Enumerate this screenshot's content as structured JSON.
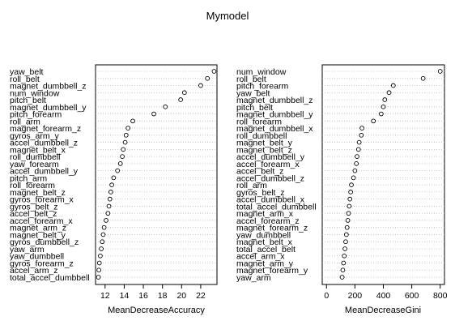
{
  "title": "Mymodel",
  "chart_data": [
    {
      "type": "dotchart",
      "xlabel": "MeanDecreaseAccuracy",
      "xlim": [
        11,
        23.7
      ],
      "xticks": [
        12,
        14,
        16,
        18,
        20,
        22
      ],
      "grid": "dotted horizontal",
      "labels": [
        "yaw_belt",
        "roll_belt",
        "magnet_dumbbell_z",
        "num_window",
        "pitch_belt",
        "magnet_dumbbell_y",
        "pitch_forearm",
        "roll_arm",
        "magnet_forearm_z",
        "gyros_arm_y",
        "accel_dumbbell_z",
        "magnet_belt_x",
        "roll_dumbbell",
        "yaw_forearm",
        "accel_dumbbell_y",
        "pitch_arm",
        "roll_forearm",
        "magnet_belt_z",
        "gyros_forearm_x",
        "gyros_belt_z",
        "accel_belt_z",
        "accel_forearm_x",
        "magnet_arm_z",
        "magnet_belt_y",
        "gyros_dumbbell_z",
        "yaw_arm",
        "yaw_dumbbell",
        "gyros_forearm_z",
        "accel_arm_z",
        "total_accel_dumbbell"
      ],
      "values": [
        23.4,
        22.7,
        22.0,
        20.3,
        19.9,
        18.3,
        17.1,
        14.9,
        14.4,
        14.2,
        14.1,
        13.9,
        13.8,
        13.6,
        13.3,
        12.9,
        12.7,
        12.6,
        12.5,
        12.4,
        12.3,
        12.1,
        11.9,
        11.8,
        11.7,
        11.6,
        11.5,
        11.4,
        11.35,
        11.3
      ]
    },
    {
      "type": "dotchart",
      "xlabel": "MeanDecreaseGini",
      "xlim": [
        -30,
        830
      ],
      "xticks": [
        0,
        200,
        400,
        600,
        800
      ],
      "grid": "dotted horizontal",
      "labels": [
        "num_window",
        "roll_belt",
        "pitch_forearm",
        "yaw_belt",
        "magnet_dumbbell_z",
        "pitch_belt",
        "magnet_dumbbell_y",
        "roll_forearm",
        "magnet_dumbbell_x",
        "roll_dumbbell",
        "magnet_belt_y",
        "magnet_belt_z",
        "accel_dumbbell_y",
        "accel_forearm_x",
        "accel_belt_z",
        "accel_dumbbell_z",
        "roll_arm",
        "gyros_belt_z",
        "accel_dumbbell_x",
        "total_accel_dumbbell",
        "magnet_arm_x",
        "accel_forearm_z",
        "magnet_forearm_z",
        "yaw_dumbbell",
        "magnet_belt_x",
        "total_accel_belt",
        "accel_arm_x",
        "magnet_arm_y",
        "magnet_forearm_y",
        "yaw_arm"
      ],
      "values": [
        800,
        680,
        470,
        440,
        410,
        400,
        385,
        330,
        250,
        245,
        230,
        225,
        215,
        210,
        200,
        190,
        175,
        170,
        165,
        160,
        155,
        150,
        145,
        140,
        135,
        130,
        125,
        120,
        115,
        110
      ]
    }
  ]
}
